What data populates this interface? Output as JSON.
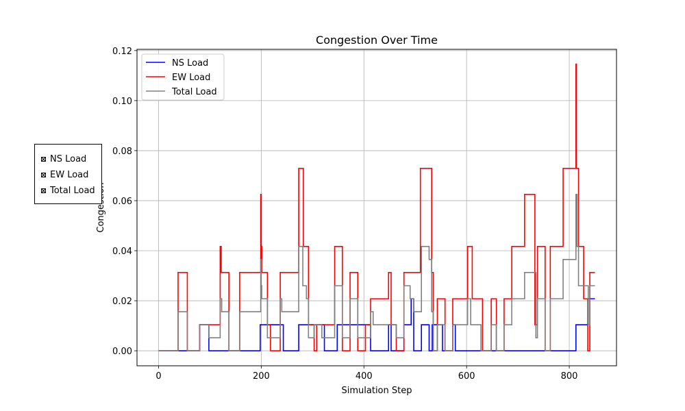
{
  "chart_data": {
    "type": "line",
    "title": "Congestion Over Time",
    "xlabel": "Simulation Step",
    "ylabel": "Congestion",
    "xlim": [
      -42,
      892
    ],
    "ylim": [
      -0.006,
      0.1205
    ],
    "xticks": [
      0,
      200,
      400,
      600,
      800
    ],
    "yticks": [
      0.0,
      0.02,
      0.04,
      0.06,
      0.08,
      0.1,
      0.12
    ],
    "ytick_labels": [
      "0.00",
      "0.02",
      "0.04",
      "0.06",
      "0.08",
      "0.10",
      "0.12"
    ],
    "grid": true,
    "legend_position": "top-left",
    "series": [
      {
        "name": "NS Load",
        "color": "#0000ff",
        "x": [
          0,
          38,
          80,
          98,
          198,
          243,
          273,
          318,
          323,
          348,
          413,
          418,
          448,
          453,
          478,
          492,
          497,
          512,
          527,
          533,
          553,
          573,
          578,
          603,
          613,
          628,
          648,
          663,
          683,
          723,
          735,
          813,
          837,
          850
        ],
        "y": [
          0,
          0,
          0.0104,
          0,
          0.0104,
          0,
          0.0104,
          0.0104,
          0,
          0.0104,
          0,
          0,
          0.0104,
          0,
          0.0104,
          0.0208,
          0,
          0.0104,
          0,
          0.0104,
          0,
          0.0104,
          0,
          0,
          0,
          0,
          0,
          0,
          0,
          0,
          0,
          0.0104,
          0.0208,
          0.0208
        ]
      },
      {
        "name": "EW Load",
        "color": "#ff0000",
        "x": [
          0,
          38,
          56,
          80,
          120,
          122,
          137,
          158,
          199,
          200,
          201,
          212,
          218,
          237,
          273,
          282,
          292,
          303,
          308,
          343,
          358,
          373,
          388,
          403,
          413,
          448,
          453,
          463,
          478,
          510,
          532,
          535,
          543,
          558,
          573,
          602,
          611,
          618,
          631,
          648,
          658,
          673,
          688,
          713,
          733,
          738,
          741,
          753,
          763,
          788,
          813,
          814,
          818,
          828,
          836,
          840,
          850
        ],
        "y": [
          0,
          0.0313,
          0,
          0.0104,
          0.0417,
          0.0313,
          0,
          0.0313,
          0.0625,
          0.0417,
          0.0313,
          0.0104,
          0,
          0.0313,
          0.0729,
          0.0417,
          0.0104,
          0,
          0.0104,
          0.0417,
          0,
          0.0313,
          0,
          0.0104,
          0.0208,
          0.0313,
          0.0104,
          0,
          0.0313,
          0.0729,
          0.0313,
          0,
          0.0208,
          0,
          0.0208,
          0.0417,
          0.0208,
          0.0208,
          0,
          0.0208,
          0,
          0.0208,
          0.0417,
          0.0625,
          0.0104,
          0.0417,
          0.0417,
          0,
          0.0417,
          0.0729,
          0.1146,
          0.0729,
          0.0417,
          0.0208,
          0,
          0.0313,
          0.0313
        ]
      },
      {
        "name": "Total Load",
        "color": "#808080",
        "x": [
          0,
          38,
          56,
          80,
          98,
          120,
          123,
          137,
          158,
          199,
          200,
          201,
          212,
          237,
          240,
          273,
          281,
          288,
          292,
          303,
          318,
          343,
          358,
          373,
          388,
          403,
          413,
          418,
          448,
          453,
          463,
          478,
          490,
          497,
          512,
          527,
          532,
          535,
          543,
          558,
          573,
          602,
          608,
          618,
          628,
          648,
          658,
          673,
          688,
          713,
          735,
          738,
          741,
          753,
          763,
          788,
          813,
          815,
          818,
          837,
          840,
          850
        ],
        "y": [
          0,
          0.0156,
          0,
          0.0104,
          0.0052,
          0.0208,
          0.0156,
          0,
          0.0156,
          0.0365,
          0.026,
          0.0208,
          0.0052,
          0.0208,
          0.0156,
          0.0417,
          0.026,
          0.0208,
          0.0052,
          0.0104,
          0.0052,
          0.026,
          0.0052,
          0.0208,
          0.0052,
          0.0052,
          0.0156,
          0.0104,
          0.0104,
          0.0104,
          0.0052,
          0.026,
          0.0208,
          0.0156,
          0.0417,
          0.0365,
          0.0156,
          0,
          0.0104,
          0,
          0.0104,
          0.0208,
          0.0104,
          0.0104,
          0,
          0.0104,
          0,
          0.0104,
          0.0208,
          0.0313,
          0.0052,
          0.0208,
          0.0208,
          0,
          0.0208,
          0.0365,
          0.0625,
          0.0417,
          0.026,
          0.0104,
          0.026,
          0.026
        ]
      }
    ]
  },
  "check_panel": {
    "items": [
      {
        "label": "NS Load"
      },
      {
        "label": "EW Load"
      },
      {
        "label": "Total Load"
      }
    ]
  }
}
